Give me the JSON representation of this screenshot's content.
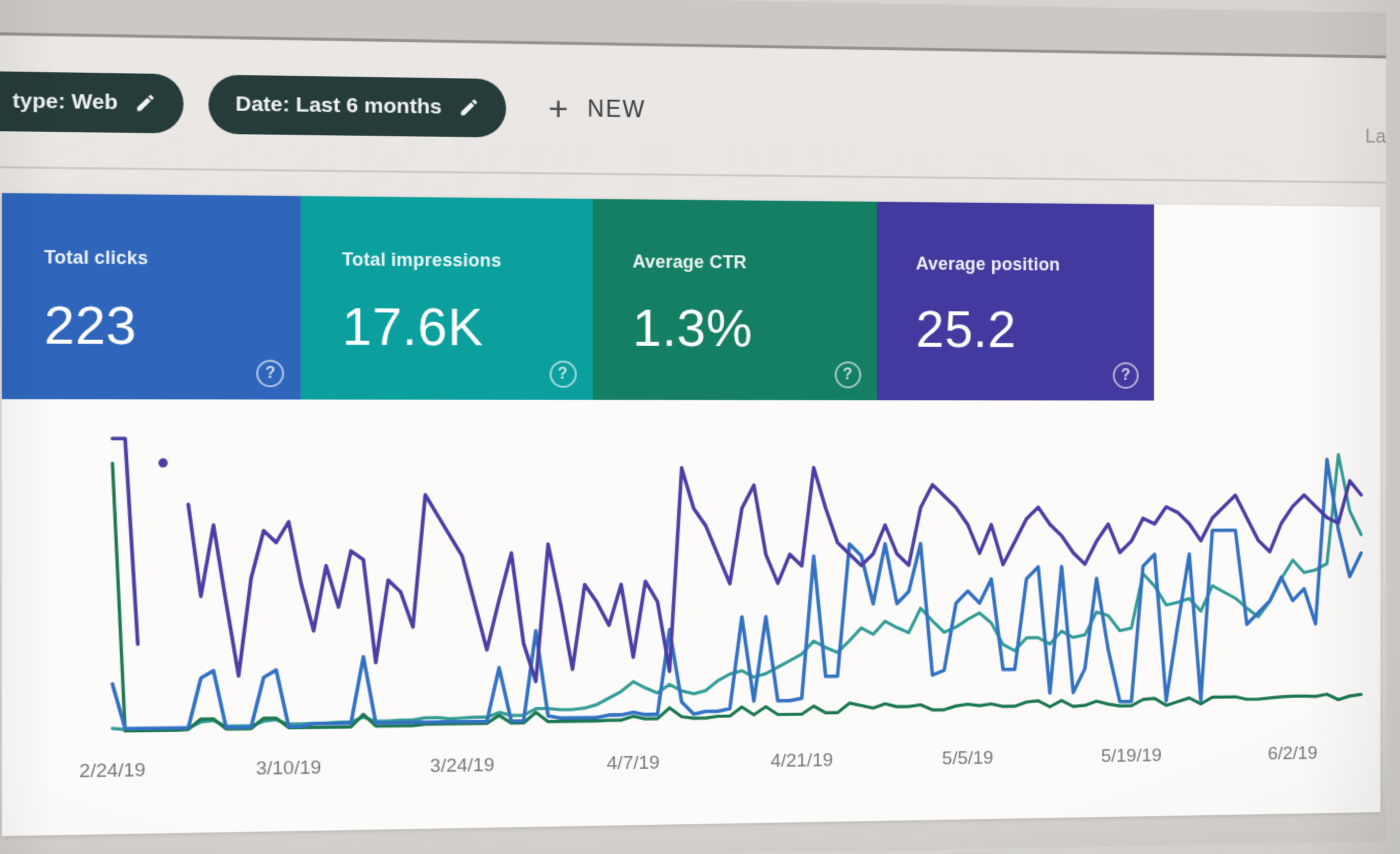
{
  "toolbar": {
    "chips": [
      {
        "label": "type: Web",
        "icon": "edit-pencil"
      },
      {
        "label": "Date: Last 6 months",
        "icon": "edit-pencil"
      }
    ],
    "new_button": {
      "plus": "+",
      "label": "NEW"
    },
    "right_partial_text": "La"
  },
  "summary_cards": [
    {
      "label": "Total clicks",
      "value": "223",
      "color": "#2b66c4",
      "help": "?"
    },
    {
      "label": "Total impressions",
      "value": "17.6K",
      "color": "#01a2a1",
      "help": "?"
    },
    {
      "label": "Average CTR",
      "value": "1.3%",
      "color": "#0e8163",
      "help": "?"
    },
    {
      "label": "Average position",
      "value": "25.2",
      "color": "#4239a6",
      "help": "?"
    }
  ],
  "chart_data": {
    "type": "line",
    "grid": false,
    "legend_position": "none",
    "x_unit": "day",
    "x_tick_labels": [
      "2/24/19",
      "3/10/19",
      "3/24/19",
      "4/7/19",
      "4/21/19",
      "5/5/19",
      "5/19/19",
      "6/2/19"
    ],
    "x_tick_day_index": [
      0,
      14,
      28,
      42,
      56,
      70,
      84,
      98
    ],
    "days_total": 105,
    "series": [
      {
        "name": "Clicks",
        "color": "#2e73cb",
        "axis_max": 12,
        "unit": "clicks/day",
        "values": [
          2,
          0.2,
          0.2,
          0.2,
          0.2,
          0.2,
          0.2,
          2.2,
          2.5,
          0.2,
          0.2,
          0.2,
          2.2,
          2.5,
          0.2,
          0.2,
          0.3,
          0.3,
          0.3,
          0.3,
          3,
          0.3,
          0.3,
          0.3,
          0.3,
          0.3,
          0.3,
          0.3,
          0.3,
          0.3,
          0.3,
          2.5,
          0.3,
          0.3,
          4,
          0.5,
          0.4,
          0.4,
          0.4,
          0.4,
          0.5,
          0.5,
          0.6,
          0.5,
          0.5,
          4,
          1,
          0.5,
          0.6,
          0.6,
          0.7,
          4.5,
          1,
          4.5,
          1,
          1,
          1.1,
          7,
          2,
          2,
          7.5,
          7,
          5,
          7.5,
          5,
          5.5,
          7.5,
          2,
          2.2,
          5,
          5.5,
          5,
          6,
          2.2,
          2.2,
          6,
          6.5,
          1.2,
          6.5,
          1.2,
          2.2,
          6,
          3,
          0.8,
          0.8,
          6.5,
          7,
          0.8,
          4,
          7,
          0.8,
          8,
          8,
          8,
          4,
          4.5,
          5,
          6,
          5,
          5.5,
          4,
          11,
          8,
          6,
          7
        ]
      },
      {
        "name": "Impressions",
        "color": "#2d9e97",
        "axis_max": 450,
        "unit": "impressions/day",
        "values": [
          8,
          6,
          5,
          5,
          6,
          6,
          7,
          16,
          18,
          9,
          9,
          9,
          16,
          18,
          11,
          11,
          12,
          12,
          13,
          13,
          20,
          14,
          14,
          15,
          15,
          18,
          18,
          16,
          17,
          18,
          18,
          25,
          20,
          20,
          30,
          30,
          28,
          28,
          30,
          35,
          45,
          55,
          70,
          60,
          52,
          65,
          55,
          50,
          55,
          70,
          80,
          85,
          75,
          80,
          90,
          100,
          110,
          130,
          120,
          112,
          130,
          150,
          140,
          160,
          150,
          142,
          180,
          160,
          142,
          150,
          162,
          172,
          156,
          122,
          112,
          132,
          132,
          122,
          142,
          132,
          136,
          172,
          166,
          142,
          146,
          232,
          212,
          182,
          186,
          192,
          172,
          212,
          202,
          192,
          176,
          162,
          186,
          222,
          252,
          232,
          236,
          246,
          420,
          330,
          292
        ]
      },
      {
        "name": "CTR",
        "color": "#15794f",
        "axis_max": 55,
        "unit": "%",
        "values": [
          50,
          0.5,
          0.5,
          0.5,
          0.5,
          0.5,
          0.6,
          2.5,
          2.5,
          0.6,
          0.6,
          0.6,
          2.5,
          2.5,
          0.7,
          0.7,
          0.7,
          0.7,
          0.7,
          0.7,
          3,
          0.8,
          0.8,
          0.8,
          0.8,
          1,
          1,
          1,
          1,
          1,
          1,
          2.5,
          1,
          1,
          3,
          1.2,
          1.2,
          1.2,
          1.2,
          1.2,
          1.3,
          1.3,
          2,
          1.5,
          1.5,
          3.5,
          1.8,
          1.5,
          1.5,
          1.8,
          1.8,
          3.5,
          2,
          3.5,
          2,
          2,
          2,
          3.5,
          2.2,
          2.2,
          4,
          3.5,
          3,
          3.8,
          3.2,
          3.2,
          3.5,
          2.5,
          2.5,
          3.2,
          3.5,
          3.2,
          3.5,
          3,
          3,
          3.8,
          4,
          2.8,
          4,
          2.8,
          3,
          3.8,
          3.2,
          2.8,
          2.8,
          4,
          4.2,
          2.8,
          3.5,
          4.2,
          3,
          4.3,
          4.3,
          4.3,
          3.8,
          3.8,
          4,
          4.2,
          4.3,
          4.3,
          4.2,
          4.6,
          3.5,
          4.2,
          4.5
        ]
      },
      {
        "name": "Position",
        "color": "#4a3ead",
        "axis_max": 50,
        "unit": "position",
        "values": [
          49.6,
          49.6,
          15,
          null,
          45.5,
          null,
          38.5,
          23,
          35,
          22,
          9.5,
          26,
          34,
          32,
          35.5,
          25,
          17,
          28,
          21,
          30.5,
          29,
          11.5,
          25.5,
          23.5,
          17.5,
          40,
          36.5,
          33,
          29.5,
          21.5,
          13.5,
          22,
          30,
          14.5,
          8,
          31.5,
          21.5,
          10,
          24.5,
          21.5,
          17.5,
          24.5,
          12,
          25,
          21.5,
          9.5,
          44.5,
          37.5,
          34.5,
          29.5,
          24.5,
          37.5,
          41.5,
          29.5,
          24.5,
          29.5,
          27.5,
          44.5,
          37.5,
          31.5,
          29.5,
          27.5,
          29.5,
          34.5,
          29.5,
          27.5,
          37.5,
          41.5,
          39.5,
          37.5,
          34.5,
          29.5,
          34.5,
          27.5,
          31.5,
          35.5,
          37.5,
          34.5,
          32.5,
          29.5,
          27.5,
          31.5,
          34.5,
          29.5,
          31.5,
          35.5,
          34.5,
          37.5,
          36.5,
          34.5,
          31.5,
          35.5,
          37.5,
          39.5,
          35.5,
          31.5,
          29.5,
          34.5,
          37.5,
          39.5,
          37.5,
          35.5,
          34.5,
          42,
          39.5
        ]
      }
    ]
  }
}
